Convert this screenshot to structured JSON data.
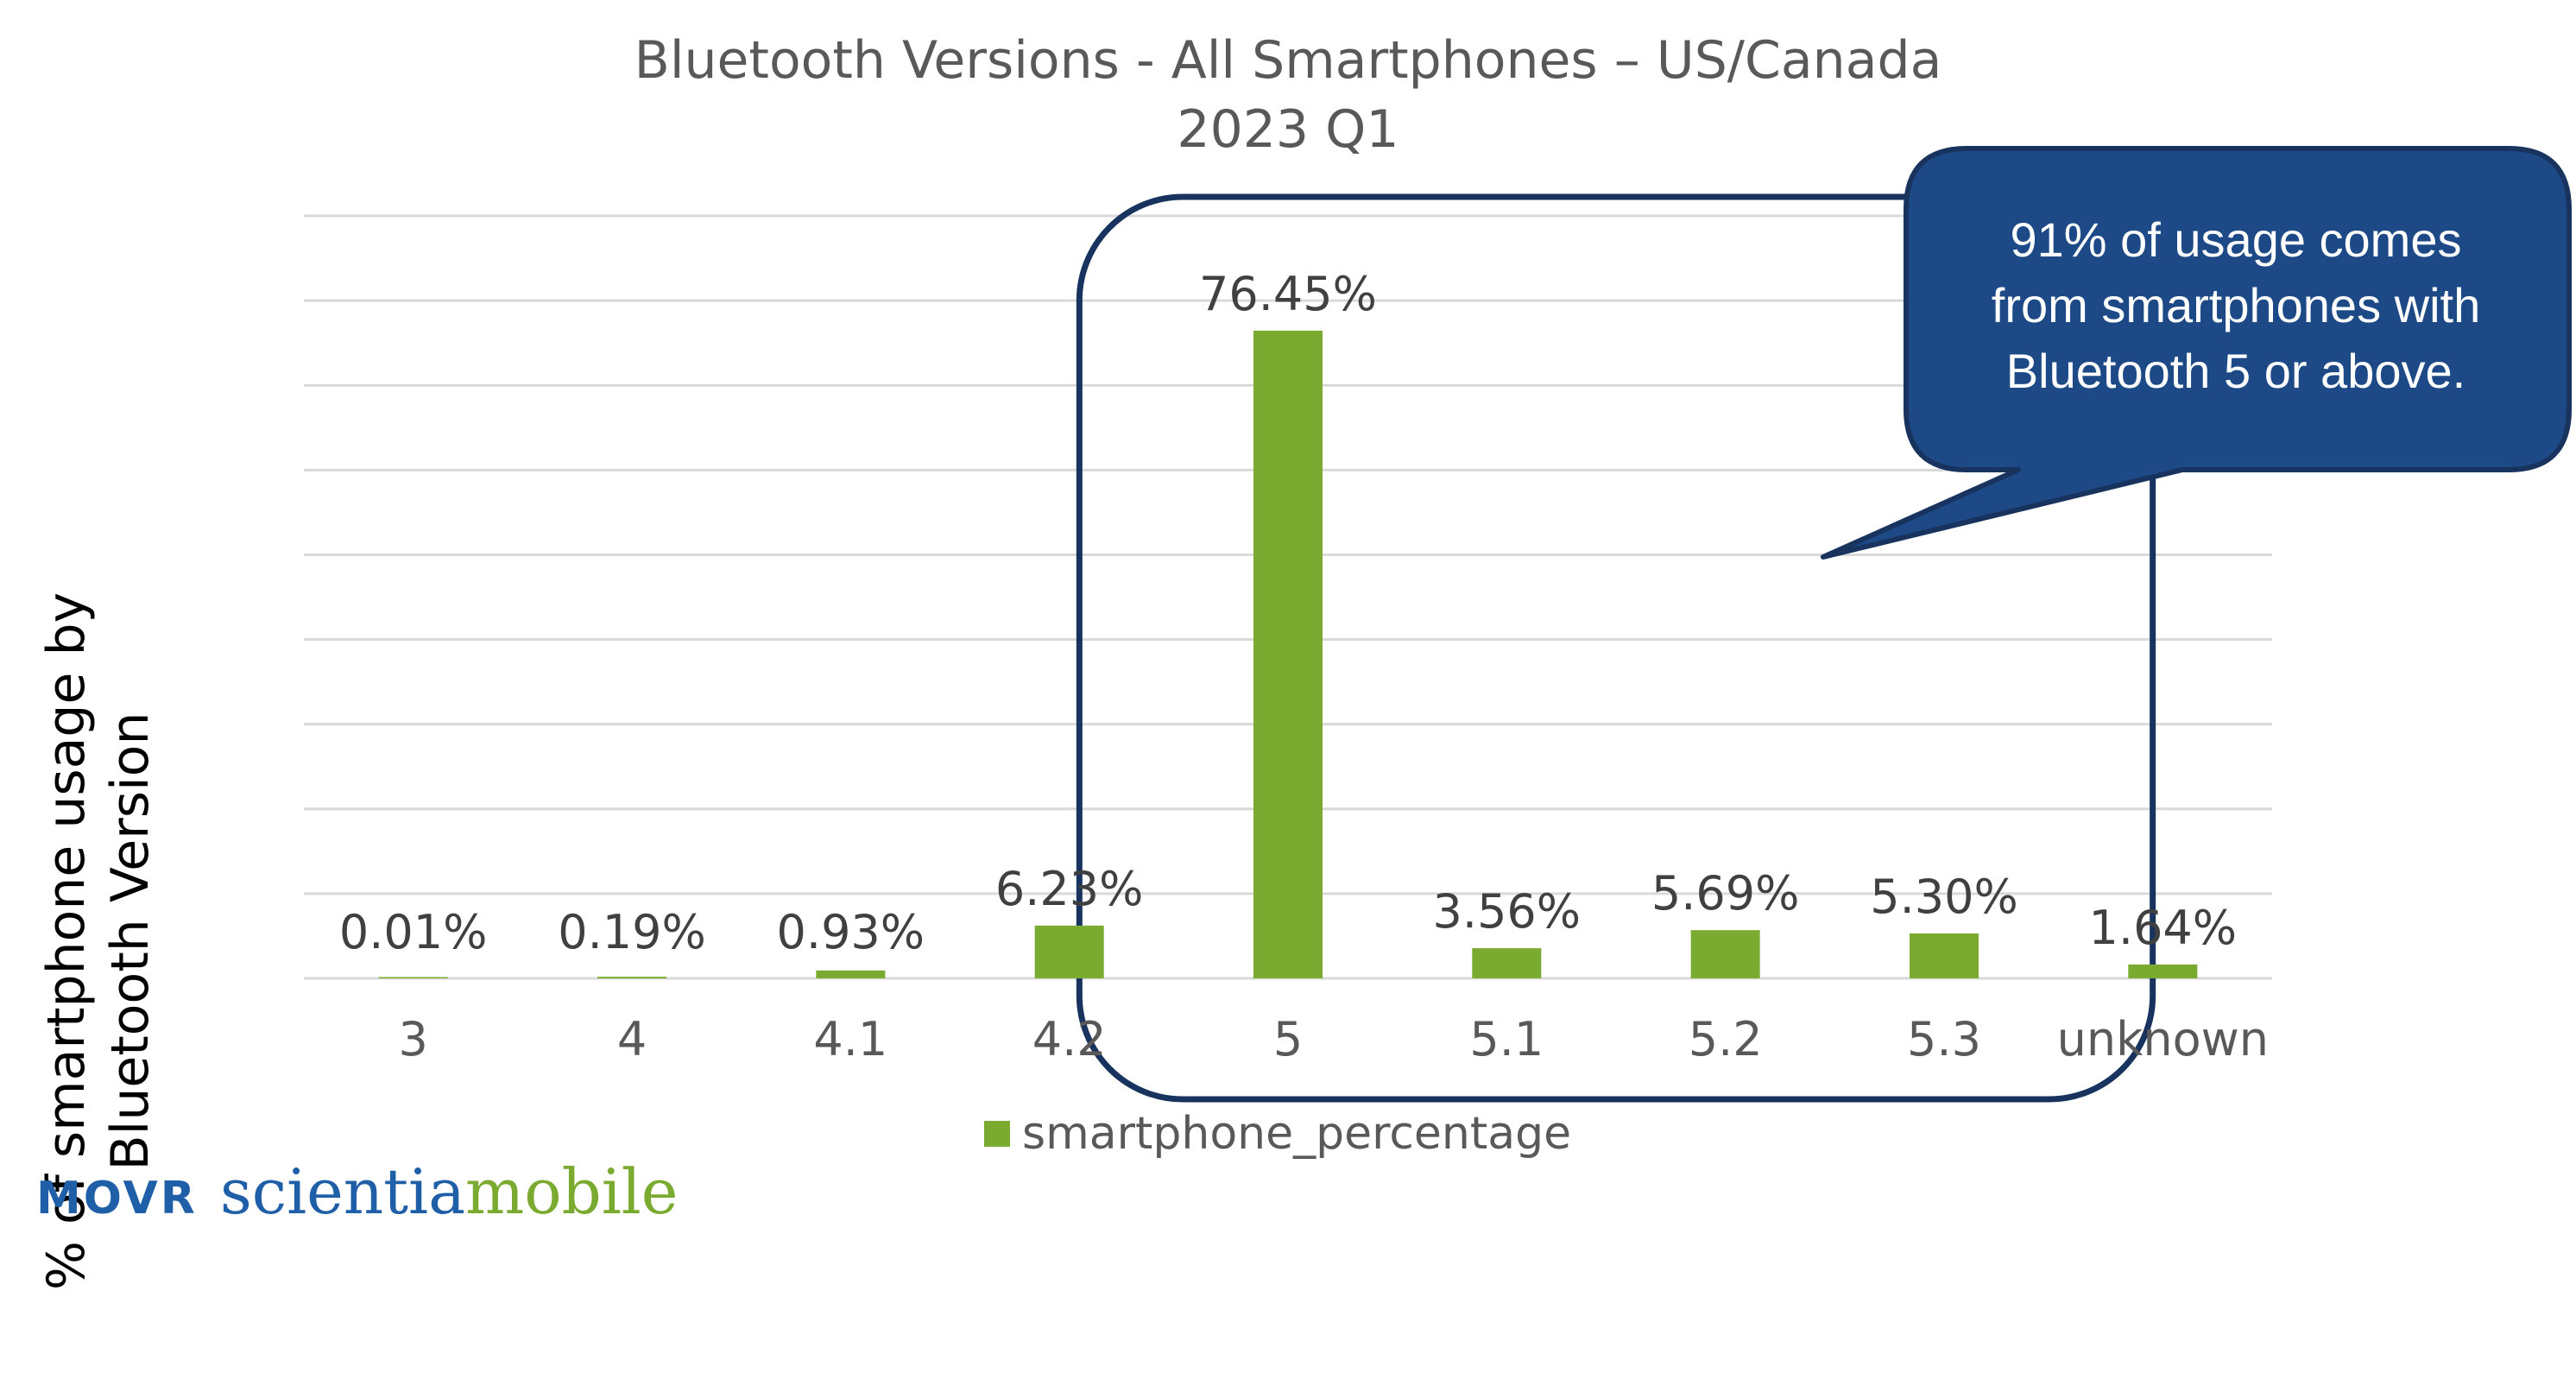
{
  "chart_data": {
    "type": "bar",
    "title": "Bluetooth Versions - All Smartphones – US/Canada",
    "subtitle": "2023 Q1",
    "xlabel": "",
    "ylabel": "% of smartphone usage by Bluetooth Version",
    "ylabel_lines": [
      "% of smartphone usage by",
      "Bluetooth Version"
    ],
    "categories": [
      "3",
      "4",
      "4.1",
      "4.2",
      "5",
      "5.1",
      "5.2",
      "5.3",
      "unknown"
    ],
    "series": [
      {
        "name": "smartphone_percentage",
        "values": [
          0.01,
          0.19,
          0.93,
          6.23,
          76.45,
          3.56,
          5.69,
          5.3,
          1.64
        ],
        "labels": [
          "0.01%",
          "0.19%",
          "0.93%",
          "6.23%",
          "76.45%",
          "3.56%",
          "5.69%",
          "5.30%",
          "1.64%"
        ],
        "color": "#7aaa2f"
      }
    ],
    "ylim": [
      0,
      90
    ],
    "grid": true,
    "legend": "bottom",
    "highlight": {
      "categories": [
        "5",
        "5.1",
        "5.2",
        "5.3"
      ],
      "color": "#17335e"
    },
    "annotation": {
      "lines": [
        "91% of usage comes",
        "from smartphones with",
        "Bluetooth 5 or above."
      ],
      "fill": "#1d4a86",
      "border": "#17335e"
    }
  },
  "logo": {
    "movr": "MOVR",
    "scientia": "scientia",
    "mobile": "mobile"
  },
  "colors": {
    "bar": "#7aaa2f",
    "grid": "#d9d9d9",
    "axis_text": "#595959",
    "label_text": "#404040",
    "brand_blue": "#1f5fa8"
  }
}
